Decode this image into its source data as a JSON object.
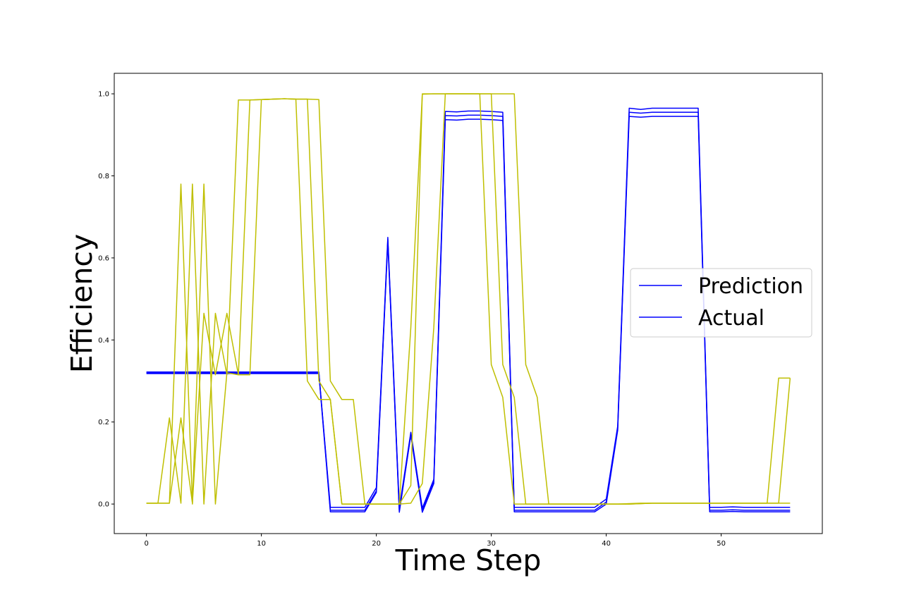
{
  "chart_data": {
    "type": "line",
    "xlabel": "Time Step",
    "ylabel": "Efficiency",
    "xlim": [
      -2.8,
      58.8
    ],
    "ylim": [
      -0.072,
      1.05
    ],
    "xticks": [
      0,
      10,
      20,
      30,
      40,
      50
    ],
    "yticks": [
      0.0,
      0.2,
      0.4,
      0.6,
      0.8,
      1.0
    ],
    "xtick_labels": [
      "0",
      "10",
      "20",
      "30",
      "40",
      "50"
    ],
    "ytick_labels": [
      "0.0",
      "0.2",
      "0.4",
      "0.6",
      "0.8",
      "1.0"
    ],
    "grid": false,
    "legend_position": "center-right",
    "legend": [
      {
        "label": "Prediction",
        "color": "#0000ff"
      },
      {
        "label": "Actual",
        "color": "#0000ff"
      }
    ],
    "series": [
      {
        "color": "#0000ff",
        "x": [
          0,
          1,
          2,
          3,
          4,
          5,
          6,
          7,
          8,
          9,
          10,
          11,
          12,
          13,
          14,
          15,
          16,
          17,
          18,
          19,
          20,
          21,
          22,
          23,
          24,
          25,
          26,
          27,
          28,
          29,
          30,
          31,
          32,
          33,
          34,
          35,
          36,
          37,
          38,
          39,
          40,
          41,
          42,
          43,
          44,
          45,
          46,
          47,
          48,
          49,
          50,
          51,
          52,
          53,
          54,
          55,
          56
        ],
        "y": [
          0.32,
          0.32,
          0.32,
          0.32,
          0.32,
          0.32,
          0.32,
          0.32,
          0.32,
          0.32,
          0.32,
          0.32,
          0.32,
          0.32,
          0.32,
          0.32,
          -0.008,
          -0.008,
          -0.008,
          -0.008,
          0.04,
          0.65,
          -0.01,
          0.175,
          -0.01,
          0.06,
          0.957,
          0.956,
          0.958,
          0.958,
          0.957,
          0.955,
          -0.008,
          -0.008,
          -0.008,
          -0.008,
          -0.008,
          -0.008,
          -0.008,
          -0.008,
          0.012,
          0.19,
          0.965,
          0.962,
          0.965,
          0.965,
          0.965,
          0.965,
          0.965,
          -0.008,
          -0.008,
          -0.007,
          -0.008,
          -0.008,
          -0.008,
          -0.008,
          -0.008
        ]
      },
      {
        "color": "#0000ff",
        "x": [
          0,
          1,
          2,
          3,
          4,
          5,
          6,
          7,
          8,
          9,
          10,
          11,
          12,
          13,
          14,
          15,
          16,
          17,
          18,
          19,
          20,
          21,
          22,
          23,
          24,
          25,
          26,
          27,
          28,
          29,
          30,
          31,
          32,
          33,
          34,
          35,
          36,
          37,
          38,
          39,
          40,
          41,
          42,
          43,
          44,
          45,
          46,
          47,
          48,
          49,
          50,
          51,
          52,
          53,
          54,
          55,
          56
        ],
        "y": [
          0.322,
          0.322,
          0.322,
          0.322,
          0.322,
          0.322,
          0.322,
          0.322,
          0.322,
          0.322,
          0.322,
          0.322,
          0.322,
          0.322,
          0.322,
          0.322,
          -0.015,
          -0.015,
          -0.015,
          -0.015,
          0.032,
          0.645,
          -0.016,
          0.17,
          -0.016,
          0.055,
          0.947,
          0.946,
          0.948,
          0.948,
          0.947,
          0.945,
          -0.015,
          -0.015,
          -0.015,
          -0.015,
          -0.015,
          -0.015,
          -0.015,
          -0.015,
          0.005,
          0.185,
          0.955,
          0.953,
          0.955,
          0.955,
          0.955,
          0.955,
          0.955,
          -0.015,
          -0.015,
          -0.014,
          -0.015,
          -0.015,
          -0.015,
          -0.015,
          -0.015
        ]
      },
      {
        "color": "#0000ff",
        "x": [
          0,
          1,
          2,
          3,
          4,
          5,
          6,
          7,
          8,
          9,
          10,
          11,
          12,
          13,
          14,
          15,
          16,
          17,
          18,
          19,
          20,
          21,
          22,
          23,
          24,
          25,
          26,
          27,
          28,
          29,
          30,
          31,
          32,
          33,
          34,
          35,
          36,
          37,
          38,
          39,
          40,
          41,
          42,
          43,
          44,
          45,
          46,
          47,
          48,
          49,
          50,
          51,
          52,
          53,
          54,
          55,
          56
        ],
        "y": [
          0.318,
          0.318,
          0.318,
          0.318,
          0.318,
          0.318,
          0.318,
          0.318,
          0.318,
          0.318,
          0.318,
          0.318,
          0.318,
          0.318,
          0.318,
          0.318,
          -0.019,
          -0.019,
          -0.019,
          -0.019,
          0.028,
          0.64,
          -0.02,
          0.168,
          -0.02,
          0.05,
          0.937,
          0.936,
          0.938,
          0.938,
          0.937,
          0.935,
          -0.019,
          -0.019,
          -0.019,
          -0.019,
          -0.019,
          -0.019,
          -0.019,
          -0.019,
          0.0,
          0.18,
          0.945,
          0.943,
          0.945,
          0.945,
          0.945,
          0.945,
          0.945,
          -0.019,
          -0.019,
          -0.018,
          -0.019,
          -0.019,
          -0.019,
          -0.019,
          -0.019
        ]
      },
      {
        "color": "#bfbf00",
        "x": [
          0,
          1,
          2,
          3,
          4,
          5,
          6,
          7,
          8,
          9,
          10,
          11,
          12,
          13,
          14,
          15,
          16,
          17,
          18,
          19,
          20,
          21,
          22,
          23,
          24,
          25,
          26,
          27,
          28,
          29,
          30,
          31,
          32,
          33,
          34,
          35,
          36,
          37,
          38,
          39,
          40,
          41,
          42,
          43,
          44,
          45,
          46,
          47,
          48,
          49,
          50,
          51,
          52,
          53,
          54,
          55,
          56
        ],
        "y": [
          0.002,
          0.002,
          0.002,
          0.78,
          0.0,
          0.78,
          0.0,
          0.32,
          0.315,
          0.985,
          0.986,
          0.987,
          0.988,
          0.987,
          0.987,
          0.3,
          0.255,
          0.0,
          0.0,
          0.0,
          0.0,
          0.0,
          0.0,
          0.045,
          1.0,
          1.0,
          1.0,
          1.0,
          1.0,
          1.0,
          1.0,
          0.34,
          0.26,
          0.0,
          0.0,
          0.0,
          0.0,
          0.0,
          0.0,
          0.0,
          0.0,
          0.0,
          0.0,
          0.001,
          0.002,
          0.002,
          0.002,
          0.002,
          0.002,
          0.002,
          0.002,
          0.002,
          0.002,
          0.002,
          0.002,
          0.002,
          0.002
        ]
      },
      {
        "color": "#bfbf00",
        "x": [
          0,
          1,
          2,
          3,
          4,
          5,
          6,
          7,
          8,
          9,
          10,
          11,
          12,
          13,
          14,
          15,
          16,
          17,
          18,
          19,
          20,
          21,
          22,
          23,
          24,
          25,
          26,
          27,
          28,
          29,
          30,
          31,
          32,
          33,
          34,
          35,
          36,
          37,
          38,
          39,
          40,
          41,
          42,
          43,
          44,
          45,
          46,
          47,
          48,
          49,
          50,
          51,
          52,
          53,
          54,
          55,
          56
        ],
        "y": [
          0.002,
          0.002,
          0.21,
          0.002,
          0.78,
          0.0,
          0.465,
          0.315,
          0.985,
          0.985,
          0.986,
          0.987,
          0.988,
          0.987,
          0.3,
          0.255,
          0.255,
          0.0,
          0.0,
          0.0,
          0.0,
          0.0,
          0.0,
          0.43,
          0.999,
          1.0,
          1.0,
          1.0,
          1.0,
          1.0,
          0.34,
          0.26,
          0.0,
          0.0,
          0.0,
          0.0,
          0.0,
          0.0,
          0.0,
          0.0,
          0.0,
          0.0,
          0.001,
          0.002,
          0.002,
          0.002,
          0.002,
          0.002,
          0.002,
          0.002,
          0.002,
          0.002,
          0.002,
          0.002,
          0.002,
          0.307,
          0.307
        ]
      },
      {
        "color": "#bfbf00",
        "x": [
          0,
          1,
          2,
          3,
          4,
          5,
          6,
          7,
          8,
          9,
          10,
          11,
          12,
          13,
          14,
          15,
          16,
          17,
          18,
          19,
          20,
          21,
          22,
          23,
          24,
          25,
          26,
          27,
          28,
          29,
          30,
          31,
          32,
          33,
          34,
          35,
          36,
          37,
          38,
          39,
          40,
          41,
          42,
          43,
          44,
          45,
          46,
          47,
          48,
          49,
          50,
          51,
          52,
          53,
          54,
          55,
          56
        ],
        "y": [
          0.002,
          0.002,
          0.002,
          0.21,
          0.002,
          0.465,
          0.315,
          0.465,
          0.315,
          0.315,
          0.986,
          0.987,
          0.988,
          0.987,
          0.987,
          0.986,
          0.3,
          0.255,
          0.255,
          0.0,
          0.0,
          0.0,
          0.0,
          0.002,
          0.05,
          0.43,
          1.0,
          1.0,
          1.0,
          1.0,
          1.0,
          1.0,
          1.0,
          0.34,
          0.26,
          0.0,
          0.0,
          0.0,
          0.0,
          0.0,
          0.0,
          0.0,
          0.0,
          0.001,
          0.002,
          0.002,
          0.002,
          0.002,
          0.002,
          0.002,
          0.002,
          0.002,
          0.002,
          0.002,
          0.002,
          0.002,
          0.307
        ]
      }
    ]
  }
}
